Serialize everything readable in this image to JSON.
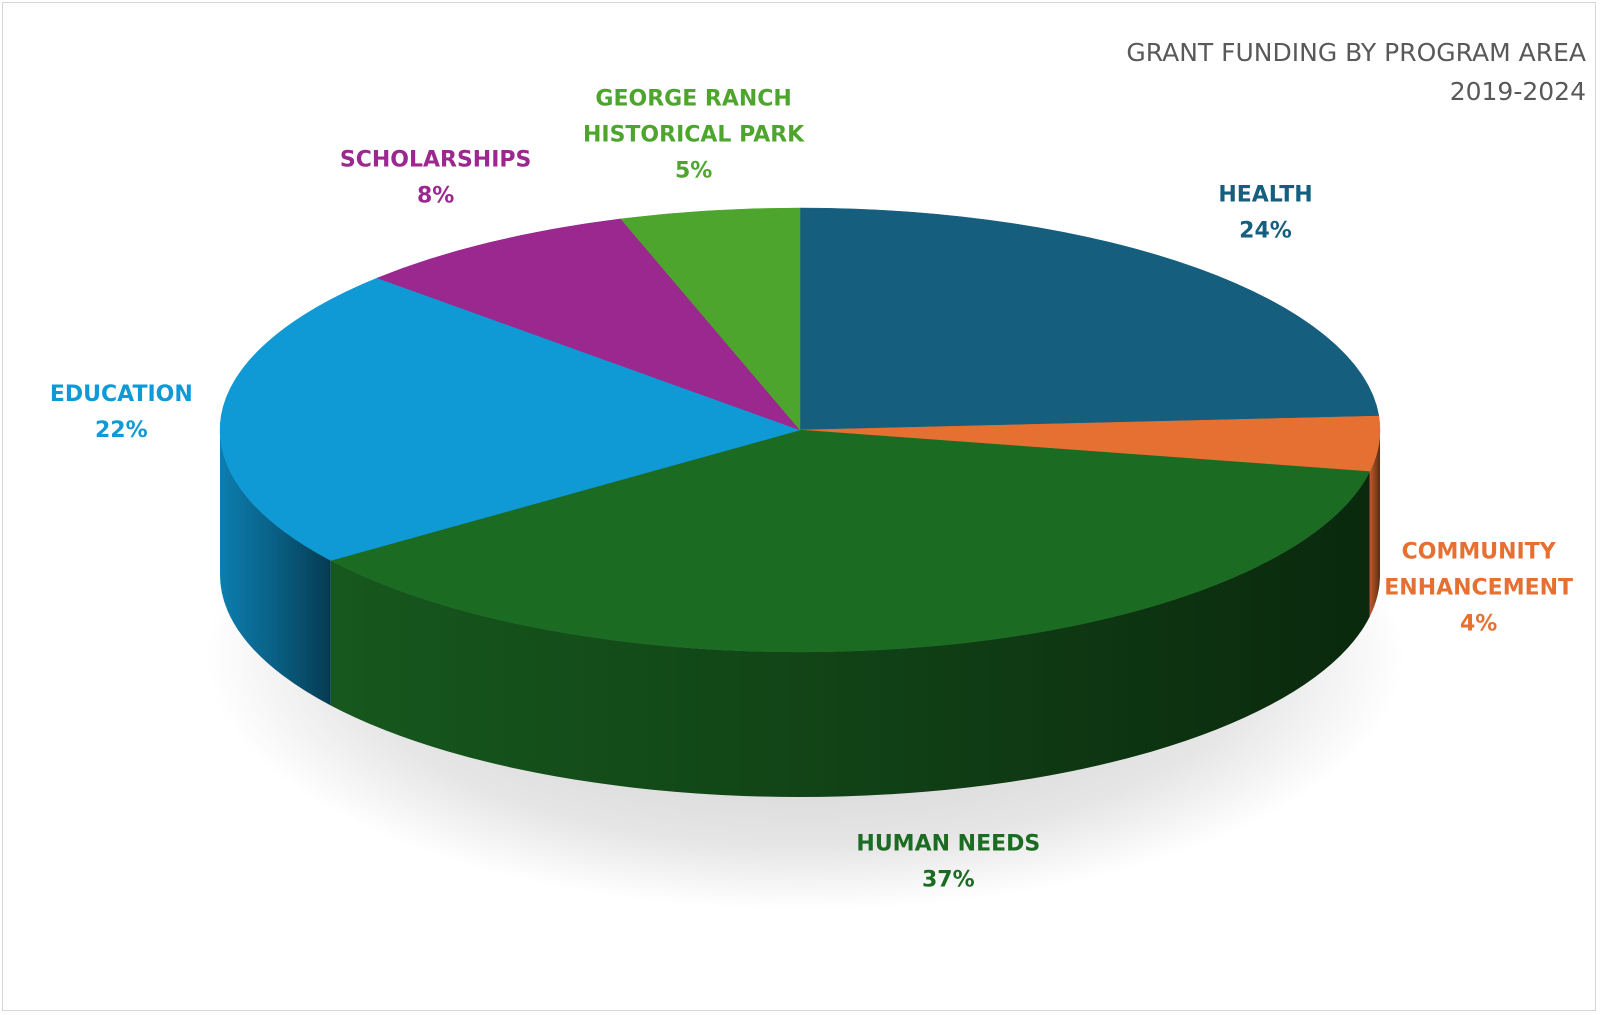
{
  "chart_data": {
    "type": "pie",
    "title": [
      "GRANT FUNDING BY PROGRAM AREA",
      "2019-2024"
    ],
    "unit": "%",
    "slices": [
      {
        "name": "HEALTH",
        "value": 24,
        "color": "#155e7e"
      },
      {
        "name": "COMMUNITY ENHANCEMENT",
        "label_lines": [
          "COMMUNITY",
          "ENHANCEMENT"
        ],
        "value": 4,
        "color": "#e57031"
      },
      {
        "name": "HUMAN NEEDS",
        "value": 37,
        "color": "#1b6b23"
      },
      {
        "name": "EDUCATION",
        "value": 22,
        "color": "#0f9ad5"
      },
      {
        "name": "SCHOLARSHIPS",
        "value": 8,
        "color": "#9a288f"
      },
      {
        "name": "GEORGE RANCH HISTORICAL PARK",
        "label_lines": [
          "GEORGE RANCH",
          "HISTORICAL PARK"
        ],
        "value": 5,
        "color": "#4ea52e"
      }
    ]
  }
}
